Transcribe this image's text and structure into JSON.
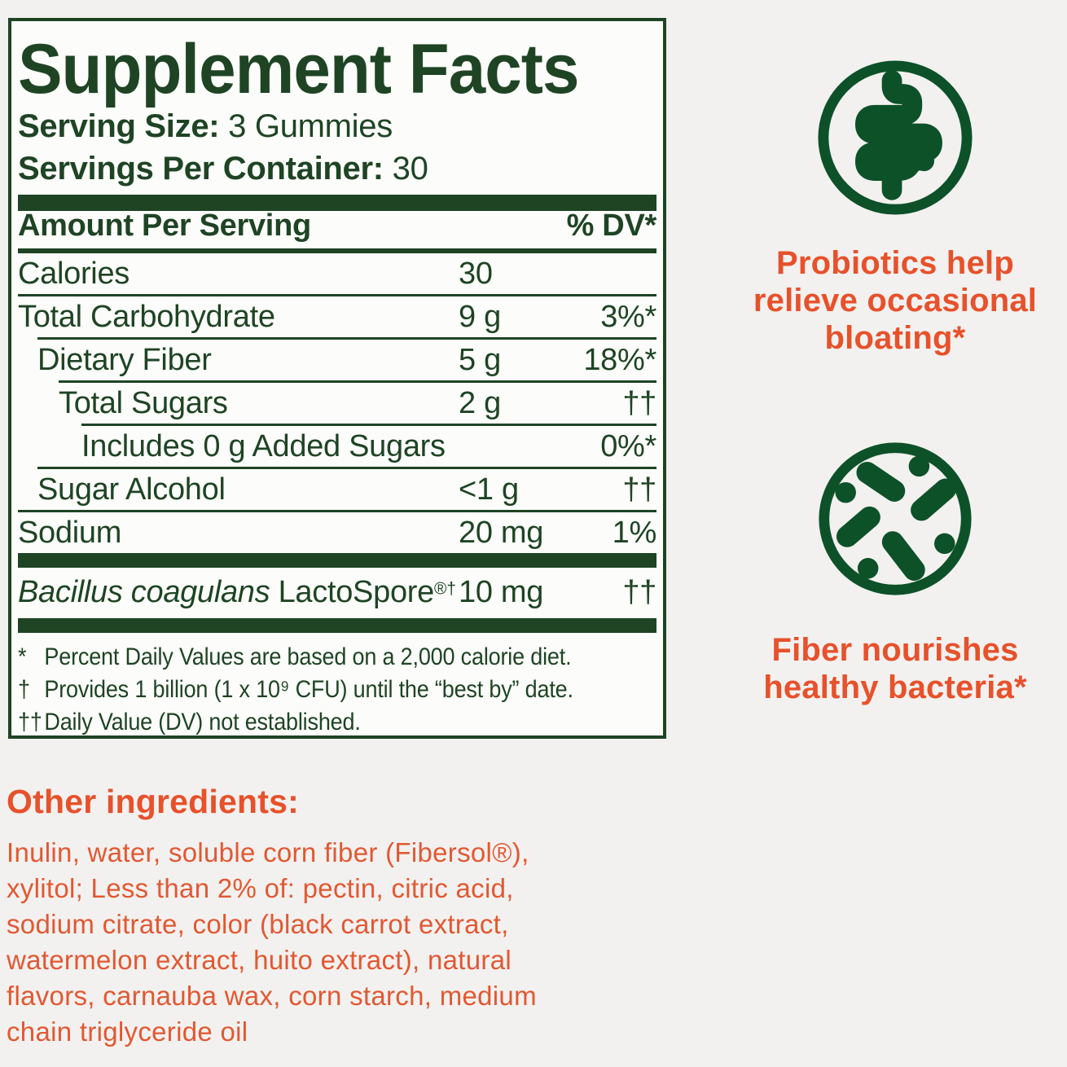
{
  "colors": {
    "green": "#1e4424",
    "icon_green": "#0d5128",
    "orange": "#e7512b",
    "orange_body": "#e25832",
    "page_bg": "#f2f1ef",
    "panel_bg": "#fcfcfa"
  },
  "panel": {
    "title": "Supplement Facts",
    "serving_size_label": "Serving Size:",
    "serving_size_value": "3 Gummies",
    "servings_label": "Servings Per Container:",
    "servings_value": "30",
    "header": {
      "amount": "Amount Per Serving",
      "dv": "% DV*"
    },
    "rows": [
      {
        "name": "Calories",
        "amount": "30",
        "dv": "",
        "indent": 0
      },
      {
        "name": "Total Carbohydrate",
        "amount": "9 g",
        "dv": "3%*",
        "indent": 0
      },
      {
        "name": "Dietary Fiber",
        "amount": "5 g",
        "dv": "18%*",
        "indent": 1
      },
      {
        "name": "Total Sugars",
        "amount": "2 g",
        "dv": "††",
        "indent": 2
      },
      {
        "name": "Includes 0 g Added Sugars",
        "amount": "",
        "dv": "0%*",
        "indent": 3
      },
      {
        "name": "Sugar Alcohol",
        "amount": "<1 g",
        "dv": "††",
        "indent": 1
      },
      {
        "name": "Sodium",
        "amount": "20 mg",
        "dv": "1%",
        "indent": 0
      }
    ],
    "probiotic": {
      "name_italic": "Bacillus coagulans",
      "name_plain": " LactoSpore",
      "name_sup": "®†",
      "amount": "10 mg",
      "dv": "††"
    },
    "footnotes": [
      {
        "sym": "*",
        "text": "Percent Daily Values are based on a 2,000 calorie diet."
      },
      {
        "sym": "†",
        "text": "Provides 1 billion (1 x 10⁹ CFU) until the “best by” date."
      },
      {
        "sym": "††",
        "text": "Daily Value (DV) not established."
      }
    ]
  },
  "right": {
    "icon1": "intestine-icon",
    "caption1_lines": [
      "Probiotics help",
      "relieve occasional",
      "bloating*"
    ],
    "icon2": "bacteria-icon",
    "caption2_lines": [
      "Fiber nourishes",
      "healthy bacteria*"
    ]
  },
  "other": {
    "heading": "Other ingredients:",
    "body_lines": [
      "Inulin, water, soluble corn fiber (Fibersol®),",
      "xylitol; Less than 2% of: pectin, citric acid,",
      "sodium citrate, color (black carrot extract,",
      "watermelon extract, huito extract), natural",
      "flavors, carnauba wax, corn starch, medium",
      "chain triglyceride oil"
    ]
  }
}
